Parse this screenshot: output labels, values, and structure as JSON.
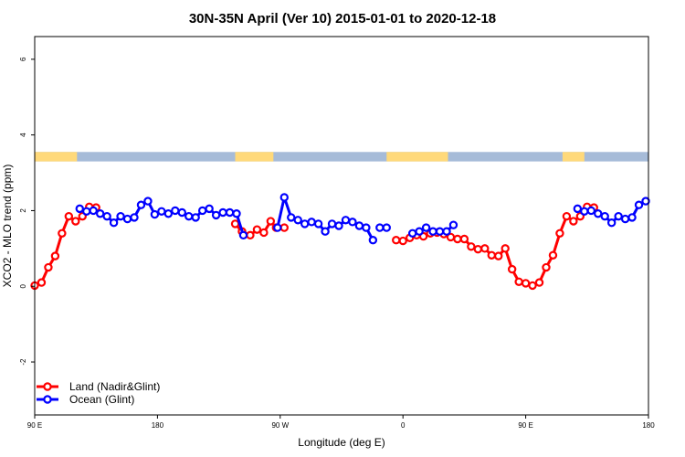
{
  "chart_data": {
    "type": "line",
    "title": "30N-35N April (Ver 10)   2015-01-01 to 2020-12-18",
    "xlabel": "Longitude (deg E)",
    "ylabel": "XCO2 - MLO trend (ppm)",
    "x_ticks": [
      {
        "value": 90,
        "label": "90 E"
      },
      {
        "value": 180,
        "label": "180"
      },
      {
        "value": 270,
        "label": "90 W"
      },
      {
        "value": 360,
        "label": "0"
      },
      {
        "value": 450,
        "label": "90 E"
      },
      {
        "value": 540,
        "label": "180"
      }
    ],
    "y_ticks": [
      -2,
      0,
      2,
      4,
      6
    ],
    "xlim": [
      90,
      540
    ],
    "ylim": [
      -3.4,
      6.6
    ],
    "legend_position": "bottom-left",
    "colors": {
      "land": "#ff0000",
      "ocean": "#0000ff",
      "land_mask": "#ffd97a",
      "ocean_mask": "#a6bbd8"
    },
    "land_mask": {
      "y_range": [
        3.3,
        3.55
      ],
      "land_segments": [
        [
          90,
          121
        ],
        [
          237,
          265
        ],
        [
          348,
          393
        ],
        [
          477,
          493
        ]
      ]
    },
    "series": [
      {
        "name": "Land (Nadir&Glint)",
        "color": "#ff0000",
        "segments": [
          [
            [
              90,
              0.02
            ],
            [
              95,
              0.1
            ],
            [
              100,
              0.5
            ],
            [
              105,
              0.8
            ],
            [
              110,
              1.4
            ],
            [
              115,
              1.85
            ],
            [
              120,
              1.72
            ],
            [
              125,
              1.85
            ],
            [
              130,
              2.1
            ],
            [
              135,
              2.08
            ]
          ],
          [
            [
              237,
              1.65
            ],
            [
              242,
              1.45
            ],
            [
              248,
              1.35
            ],
            [
              253,
              1.5
            ],
            [
              258,
              1.42
            ],
            [
              263,
              1.72
            ],
            [
              267,
              1.55
            ],
            [
              273,
              1.55
            ]
          ],
          [
            [
              355,
              1.22
            ],
            [
              360,
              1.2
            ],
            [
              365,
              1.28
            ],
            [
              370,
              1.35
            ],
            [
              375,
              1.32
            ],
            [
              380,
              1.4
            ],
            [
              385,
              1.42
            ],
            [
              390,
              1.38
            ],
            [
              395,
              1.3
            ],
            [
              400,
              1.25
            ],
            [
              405,
              1.25
            ],
            [
              410,
              1.05
            ],
            [
              415,
              0.98
            ],
            [
              420,
              1.0
            ],
            [
              425,
              0.82
            ],
            [
              430,
              0.8
            ],
            [
              435,
              1.0
            ],
            [
              440,
              0.45
            ],
            [
              445,
              0.12
            ],
            [
              450,
              0.08
            ],
            [
              455,
              0.02
            ],
            [
              460,
              0.1
            ],
            [
              465,
              0.5
            ],
            [
              470,
              0.82
            ],
            [
              475,
              1.4
            ],
            [
              480,
              1.85
            ],
            [
              485,
              1.72
            ],
            [
              490,
              1.85
            ],
            [
              495,
              2.1
            ],
            [
              500,
              2.08
            ]
          ]
        ]
      },
      {
        "name": "Ocean (Glint)",
        "color": "#0000ff",
        "segments": [
          [
            [
              123,
              2.05
            ],
            [
              128,
              1.98
            ],
            [
              133,
              2.0
            ],
            [
              138,
              1.92
            ],
            [
              143,
              1.85
            ],
            [
              148,
              1.68
            ],
            [
              153,
              1.85
            ],
            [
              158,
              1.78
            ],
            [
              163,
              1.82
            ],
            [
              168,
              2.15
            ],
            [
              173,
              2.25
            ],
            [
              178,
              1.9
            ],
            [
              183,
              1.98
            ],
            [
              188,
              1.92
            ],
            [
              193,
              2.0
            ],
            [
              198,
              1.95
            ],
            [
              203,
              1.85
            ],
            [
              208,
              1.82
            ],
            [
              213,
              2.0
            ],
            [
              218,
              2.05
            ],
            [
              223,
              1.88
            ],
            [
              228,
              1.95
            ],
            [
              233,
              1.95
            ],
            [
              238,
              1.92
            ],
            [
              243,
              1.35
            ]
          ],
          [
            [
              268,
              1.55
            ],
            [
              273,
              2.35
            ],
            [
              278,
              1.82
            ],
            [
              283,
              1.75
            ],
            [
              288,
              1.65
            ],
            [
              293,
              1.7
            ],
            [
              298,
              1.65
            ],
            [
              303,
              1.45
            ],
            [
              308,
              1.65
            ],
            [
              313,
              1.6
            ],
            [
              318,
              1.75
            ],
            [
              323,
              1.7
            ],
            [
              328,
              1.6
            ],
            [
              333,
              1.55
            ],
            [
              338,
              1.22
            ]
          ],
          [
            [
              343,
              1.55
            ],
            [
              348,
              1.55
            ]
          ],
          [
            [
              367,
              1.4
            ],
            [
              372,
              1.45
            ],
            [
              377,
              1.55
            ],
            [
              382,
              1.45
            ],
            [
              387,
              1.45
            ],
            [
              392,
              1.45
            ],
            [
              397,
              1.62
            ]
          ],
          [
            [
              488,
              2.05
            ],
            [
              493,
              1.98
            ],
            [
              498,
              2.0
            ],
            [
              503,
              1.92
            ],
            [
              508,
              1.85
            ],
            [
              513,
              1.68
            ],
            [
              518,
              1.85
            ],
            [
              523,
              1.78
            ],
            [
              528,
              1.82
            ],
            [
              533,
              2.15
            ],
            [
              538,
              2.25
            ]
          ]
        ]
      }
    ]
  }
}
